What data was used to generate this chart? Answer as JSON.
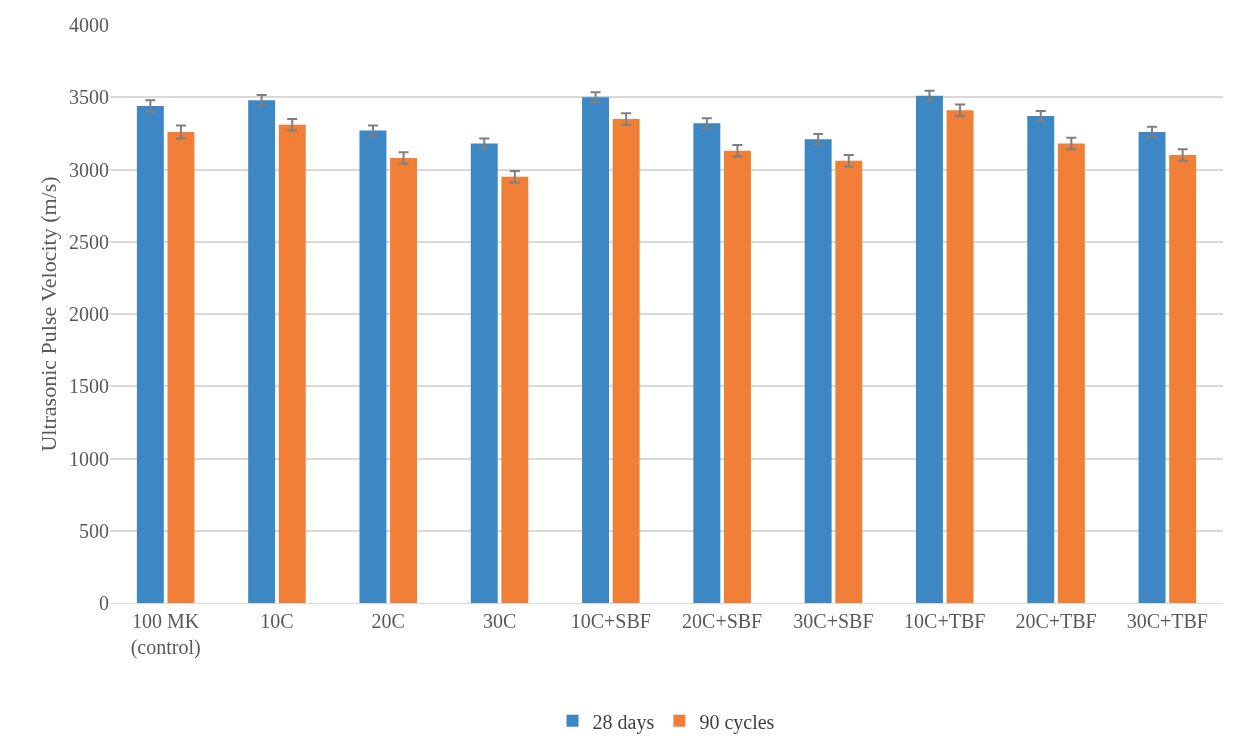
{
  "chart_data": {
    "type": "bar",
    "ylabel": "Ultrasonic Pulse Velocity (m/s)",
    "categories": [
      "100 MK (control)",
      "10C",
      "20C",
      "30C",
      "10C+SBF",
      "20C+SBF",
      "30C+SBF",
      "10C+TBF",
      "20C+TBF",
      "30C+TBF"
    ],
    "series": [
      {
        "name": "28 days",
        "color": "#3d87c5",
        "values": [
          3440,
          3480,
          3270,
          3180,
          3500,
          3320,
          3210,
          3510,
          3370,
          3260
        ],
        "errors": [
          40,
          35,
          35,
          35,
          35,
          35,
          35,
          35,
          35,
          35
        ]
      },
      {
        "name": "90 cycles",
        "color": "#f27f38",
        "values": [
          3260,
          3310,
          3080,
          2950,
          3350,
          3130,
          3060,
          3410,
          3180,
          3100
        ],
        "errors": [
          45,
          40,
          40,
          40,
          40,
          40,
          40,
          40,
          40,
          40
        ]
      }
    ],
    "ylim": [
      0,
      4000
    ],
    "yticks": [
      0,
      500,
      1000,
      1500,
      2000,
      2500,
      3000,
      3500,
      4000
    ],
    "grid": "y",
    "legend": "bottom"
  }
}
